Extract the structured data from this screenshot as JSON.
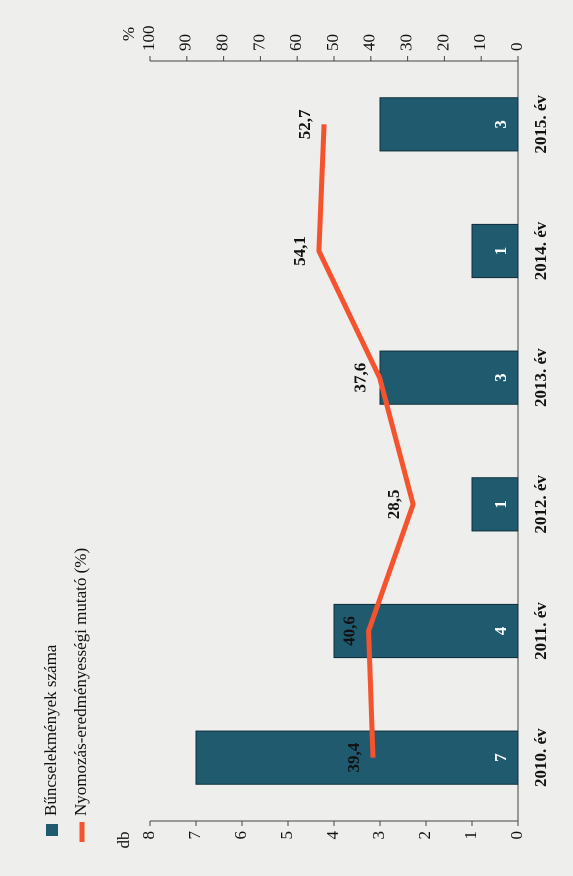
{
  "chart_data": {
    "type": "bar",
    "categories": [
      "2010. év",
      "2011. év",
      "2012. év",
      "2013. év",
      "2014. év",
      "2015. év"
    ],
    "series": [
      {
        "name": "Bűncselekmények száma",
        "type": "bar",
        "color": "#1f5a6e",
        "values": [
          7,
          4,
          1,
          3,
          1,
          3
        ]
      },
      {
        "name": "Nyomozás-eredményességi mutató (%)",
        "type": "line",
        "axis": "y2",
        "color": "#f4532e",
        "values": [
          39.4,
          40.6,
          28.5,
          37.6,
          54.1,
          52.7
        ],
        "value_labels": [
          "39,4",
          "40,6",
          "28,5",
          "37,6",
          "54,1",
          "52,7"
        ]
      }
    ],
    "ylabel": "db",
    "ylim": [
      0,
      8
    ],
    "yticks": [
      0,
      1,
      2,
      3,
      4,
      5,
      6,
      7,
      8
    ],
    "y2label": "%",
    "y2lim": [
      0,
      100
    ],
    "y2ticks": [
      0,
      10,
      20,
      30,
      40,
      50,
      60,
      70,
      80,
      90,
      100
    ]
  }
}
